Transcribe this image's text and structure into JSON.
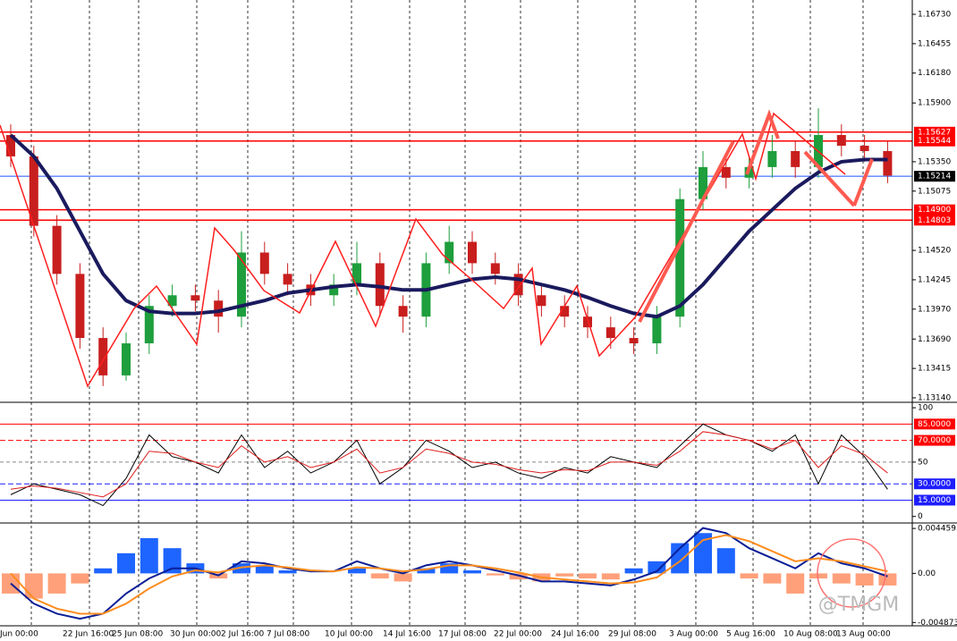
{
  "chart_data": [
    {
      "type": "candlestick",
      "name": "price",
      "ylim": [
        1.13098,
        1.16864
      ],
      "yticks": [
        {
          "value": 1.1673,
          "label": "1.16730"
        },
        1.16455,
        {
          "value": 1.1618,
          "label": "1.16180"
        },
        {
          "value": 1.159,
          "label": "1.15900"
        },
        {
          "value": 1.1535,
          "label": "1.15350"
        },
        1.15075,
        {
          "value": 1.1452,
          "label": "1.14520"
        },
        1.14245,
        {
          "value": 1.1397,
          "label": "1.13970"
        },
        {
          "value": 1.1369,
          "label": "1.13690"
        },
        1.13415,
        {
          "value": 1.1314,
          "label": "1.13140"
        }
      ],
      "levels": [
        {
          "value": 1.15627,
          "color": "#ff0000"
        },
        1.15544,
        {
          "value": 1.15214,
          "color": "#1e50ff"
        },
        {
          "value": 1.149,
          "label": "1.14900",
          "color": "#ff0000"
        },
        {
          "value": 1.14803,
          "color": "#ff0000"
        }
      ],
      "open": [
        1.156,
        1.154,
        1.1475,
        1.143,
        1.137,
        1.1335,
        1.1365,
        1.14,
        1.141,
        1.1405,
        1.139,
        1.145,
        1.143,
        1.142,
        1.141,
        1.142,
        1.144,
        1.14,
        1.139,
        1.144,
        1.146,
        1.144,
        1.143,
        1.141,
        1.14,
        1.139,
        1.138,
        1.137,
        1.1365,
        1.139,
        1.15,
        1.153,
        1.152,
        1.153,
        1.1545,
        1.153,
        1.156,
        1.155,
        1.1545
      ],
      "high": [
        1.157,
        1.155,
        1.1485,
        1.144,
        1.138,
        1.1375,
        1.141,
        1.142,
        1.142,
        1.1415,
        1.147,
        1.146,
        1.144,
        1.143,
        1.143,
        1.146,
        1.145,
        1.141,
        1.145,
        1.1475,
        1.147,
        1.145,
        1.144,
        1.142,
        1.141,
        1.14,
        1.139,
        1.138,
        1.14,
        1.151,
        1.1545,
        1.154,
        1.154,
        1.156,
        1.1555,
        1.1585,
        1.157,
        1.156,
        1.1555
      ],
      "low": [
        1.153,
        1.1465,
        1.142,
        1.136,
        1.1325,
        1.133,
        1.1355,
        1.139,
        1.1395,
        1.1375,
        1.138,
        1.142,
        1.141,
        1.14,
        1.14,
        1.141,
        1.139,
        1.1375,
        1.138,
        1.143,
        1.143,
        1.142,
        1.14,
        1.139,
        1.138,
        1.137,
        1.136,
        1.1355,
        1.1355,
        1.138,
        1.149,
        1.151,
        1.151,
        1.152,
        1.152,
        1.152,
        1.154,
        1.1535,
        1.1515
      ],
      "close": [
        1.154,
        1.1475,
        1.143,
        1.137,
        1.1335,
        1.1365,
        1.14,
        1.141,
        1.1405,
        1.139,
        1.145,
        1.143,
        1.142,
        1.141,
        1.142,
        1.144,
        1.14,
        1.139,
        1.144,
        1.146,
        1.144,
        1.143,
        1.141,
        1.14,
        1.139,
        1.138,
        1.137,
        1.1365,
        1.139,
        1.15,
        1.153,
        1.152,
        1.153,
        1.1545,
        1.153,
        1.156,
        1.155,
        1.1545,
        1.1522
      ],
      "ma": [
        1.156,
        1.154,
        1.151,
        1.147,
        1.143,
        1.1405,
        1.1395,
        1.1393,
        1.1393,
        1.1395,
        1.14,
        1.1405,
        1.1412,
        1.1415,
        1.1418,
        1.142,
        1.1418,
        1.1415,
        1.1415,
        1.142,
        1.1425,
        1.1427,
        1.1425,
        1.142,
        1.1415,
        1.1408,
        1.14,
        1.1393,
        1.139,
        1.14,
        1.142,
        1.1445,
        1.147,
        1.149,
        1.151,
        1.1525,
        1.1535,
        1.1537,
        1.1537
      ],
      "up_color": "#1e9e3c",
      "down_color": "#c81e1e",
      "ma_color": "#1a1a5e"
    },
    {
      "type": "line",
      "name": "stochastic",
      "ylim": [
        -6,
        105
      ],
      "yticks": [
        100,
        50,
        0
      ],
      "levels": [
        {
          "value": 85,
          "label": "85.0000",
          "color": "#ff0000"
        },
        {
          "value": 70,
          "label": "70.0000",
          "color": "#ff0000"
        },
        {
          "value": 30,
          "label": "30.0000",
          "color": "#1e1eff"
        },
        {
          "value": 15,
          "label": "15.0000",
          "color": "#1e1eff"
        }
      ],
      "series": [
        {
          "color": "#000000",
          "values": [
            20,
            30,
            25,
            20,
            10,
            35,
            75,
            55,
            50,
            40,
            75,
            45,
            60,
            40,
            50,
            70,
            30,
            45,
            70,
            60,
            45,
            50,
            40,
            35,
            45,
            40,
            55,
            50,
            45,
            65,
            85,
            75,
            70,
            60,
            75,
            30,
            75,
            55,
            25
          ]
        },
        {
          "color": "#e01e1e",
          "values": [
            25,
            28,
            26,
            22,
            18,
            30,
            60,
            58,
            50,
            45,
            65,
            50,
            55,
            45,
            50,
            62,
            40,
            45,
            62,
            58,
            50,
            48,
            43,
            40,
            43,
            42,
            50,
            50,
            47,
            60,
            78,
            75,
            70,
            62,
            70,
            45,
            65,
            57,
            40
          ]
        }
      ]
    },
    {
      "type": "macd",
      "name": "macd",
      "ylim": [
        -0.0052,
        0.005
      ],
      "yticks": [
        0.0044593,
        {
          "value": 0,
          "label": "0.00"
        },
        -0.004873
      ],
      "histogram": [
        -0.002,
        -0.0025,
        -0.002,
        -0.001,
        0.0005,
        0.002,
        0.0035,
        0.0025,
        0.001,
        -0.0005,
        0.001,
        0.0008,
        0.0003,
        0,
        0,
        0.0005,
        -0.0005,
        -0.0008,
        0.0005,
        0.001,
        0.0003,
        -0.0002,
        -0.0006,
        -0.0008,
        -0.0003,
        -0.0005,
        -0.0006,
        0.0005,
        0.0012,
        0.003,
        0.004,
        0.0025,
        -0.0005,
        -0.001,
        -0.002,
        -0.0005,
        -0.001,
        -0.0012,
        -0.0012
      ],
      "pos_color": "#1e64ff",
      "neg_color": "#ffa07a",
      "series": [
        {
          "color": "#0a1e96",
          "values": [
            -0.001,
            -0.003,
            -0.004,
            -0.0045,
            -0.004,
            -0.002,
            -0.0005,
            0.0005,
            0.0005,
            -0.0002,
            0.0012,
            0.001,
            0.0005,
            0.0002,
            0.0002,
            0.0012,
            0.0005,
            0,
            0.0008,
            0.0012,
            0.0008,
            0.0003,
            -0.0002,
            -0.0008,
            -0.0008,
            -0.001,
            -0.0012,
            -0.0006,
            0.0002,
            0.0025,
            0.0045,
            0.004,
            0.0025,
            0.0015,
            0.0005,
            0.002,
            0.001,
            0.0005,
            -0.0003
          ]
        },
        {
          "color": "#ff8c1e",
          "values": [
            0,
            -0.0025,
            -0.0035,
            -0.004,
            -0.004,
            -0.003,
            -0.0015,
            -0.0003,
            0.0003,
            0.0001,
            0.0006,
            0.0008,
            0.0006,
            0.0003,
            0.0002,
            0.0006,
            0.0005,
            0.0002,
            0.0004,
            0.0008,
            0.0008,
            0.0005,
            0.0001,
            -0.0004,
            -0.0006,
            -0.0008,
            -0.001,
            -0.0009,
            -0.0004,
            0.0012,
            0.0033,
            0.0038,
            0.0032,
            0.0022,
            0.0012,
            0.0015,
            0.0012,
            0.0007,
            0.0002
          ]
        }
      ]
    }
  ],
  "x_labels": [
    "Jun 00:00",
    "22 Jun 16:00",
    "25 Jun 08:00",
    "30 Jun 00:00",
    "2 Jul 16:00",
    "7 Jul 08:00",
    "10 Jul 00:00",
    "14 Jul 16:00",
    "17 Jul 08:00",
    "22 Jul 00:00",
    "24 Jul 16:00",
    "29 Jul 08:00",
    "3 Aug 00:00",
    "5 Aug 16:00",
    "10 Aug 08:00",
    "13 Aug 00:00"
  ],
  "watermark": "@TMGM"
}
